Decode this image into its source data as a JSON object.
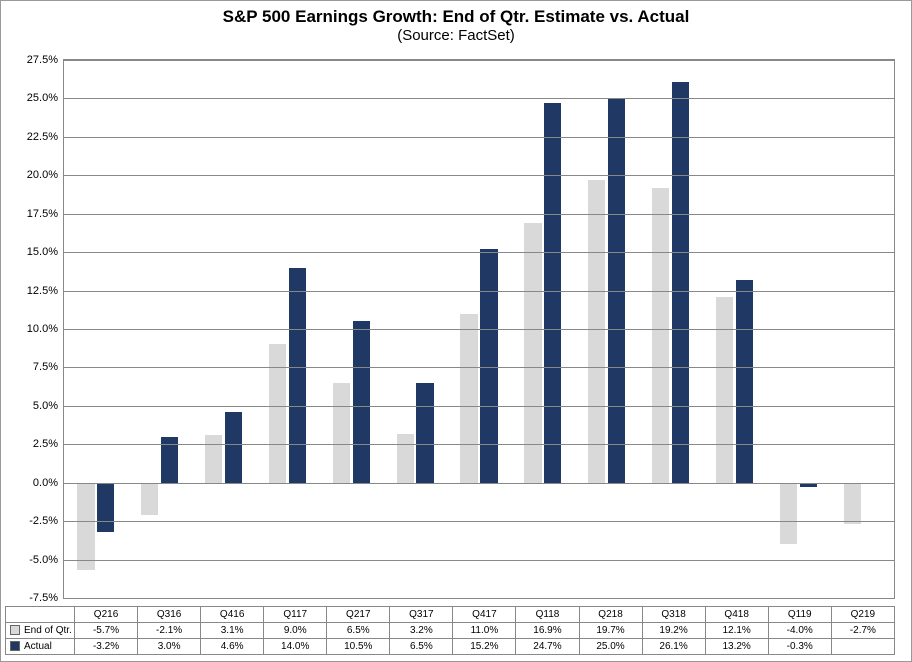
{
  "title": "S&P 500 Earnings Growth: End of Qtr. Estimate vs. Actual",
  "subtitle": "(Source: FactSet)",
  "chart": {
    "type": "bar",
    "categories": [
      "Q216",
      "Q316",
      "Q416",
      "Q117",
      "Q217",
      "Q317",
      "Q417",
      "Q118",
      "Q218",
      "Q318",
      "Q418",
      "Q119",
      "Q219"
    ],
    "series": [
      {
        "name": "End of Qtr.",
        "key": "estimate",
        "values": [
          -5.7,
          -2.1,
          3.1,
          9.0,
          6.5,
          3.2,
          11.0,
          16.9,
          19.7,
          19.2,
          12.1,
          -4.0,
          -2.7
        ],
        "color": "#d9d9d9"
      },
      {
        "name": "Actual",
        "key": "actual",
        "values": [
          -3.2,
          3.0,
          4.6,
          14.0,
          10.5,
          6.5,
          15.2,
          24.7,
          25.0,
          26.1,
          13.2,
          -0.3,
          null
        ],
        "color": "#1f3864"
      }
    ],
    "ymin": -7.5,
    "ymax": 27.5,
    "ytick_step": 2.5,
    "tick_suffix": "%",
    "background_color": "#ffffff",
    "grid_color": "#888888",
    "tick_fontsize": 11,
    "title_fontsize": 17,
    "subtitle_fontsize": 15,
    "bar_group_width": 0.58,
    "bar_gap": 0.04
  },
  "table": {
    "row_headers": [
      "End of Qtr.",
      "Actual"
    ],
    "display": [
      [
        "-5.7%",
        "-2.1%",
        "3.1%",
        "9.0%",
        "6.5%",
        "3.2%",
        "11.0%",
        "16.9%",
        "19.7%",
        "19.2%",
        "12.1%",
        "-4.0%",
        "-2.7%"
      ],
      [
        "-3.2%",
        "3.0%",
        "4.6%",
        "14.0%",
        "10.5%",
        "6.5%",
        "15.2%",
        "24.7%",
        "25.0%",
        "26.1%",
        "13.2%",
        "-0.3%",
        ""
      ]
    ]
  }
}
